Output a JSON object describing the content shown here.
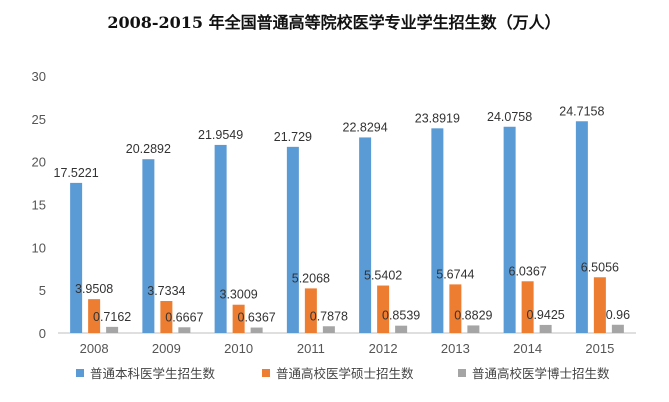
{
  "chart_data": {
    "type": "bar",
    "title": "2008-2015 年全国普通高等院校医学专业学生招生数（万人）",
    "xlabel": "",
    "ylabel": "",
    "categories": [
      "2008",
      "2009",
      "2010",
      "2011",
      "2012",
      "2013",
      "2014",
      "2015"
    ],
    "ylim": [
      0,
      30
    ],
    "yticks": [
      "0",
      "5",
      "10",
      "15",
      "20",
      "25",
      "30"
    ],
    "grid": false,
    "legend_position": "bottom",
    "series": [
      {
        "name": "普通本科医学生招生数",
        "color": "#5B9BD5",
        "values": [
          17.5221,
          20.2892,
          21.9549,
          21.729,
          22.8294,
          23.8919,
          24.0758,
          24.7158
        ],
        "labels": [
          "17.5221",
          "20.2892",
          "21.9549",
          "21.729",
          "22.8294",
          "23.8919",
          "24.0758",
          "24.7158"
        ]
      },
      {
        "name": "普通高校医学硕士招生数",
        "color": "#ED7D31",
        "values": [
          3.9508,
          3.7334,
          3.3009,
          5.2068,
          5.5402,
          5.6744,
          6.0367,
          6.5056
        ],
        "labels": [
          "3.9508",
          "3.7334",
          "3.3009",
          "5.2068",
          "5.5402",
          "5.6744",
          "6.0367",
          "6.5056"
        ]
      },
      {
        "name": "普通高校医学博士招生数",
        "color": "#A5A5A5",
        "values": [
          0.7162,
          0.6667,
          0.6367,
          0.7878,
          0.8539,
          0.8829,
          0.9425,
          0.96
        ],
        "labels": [
          "0.7162",
          "0.6667",
          "0.6367",
          "0.7878",
          "0.8539",
          "0.8829",
          "0.9425",
          "0.96"
        ]
      }
    ]
  }
}
